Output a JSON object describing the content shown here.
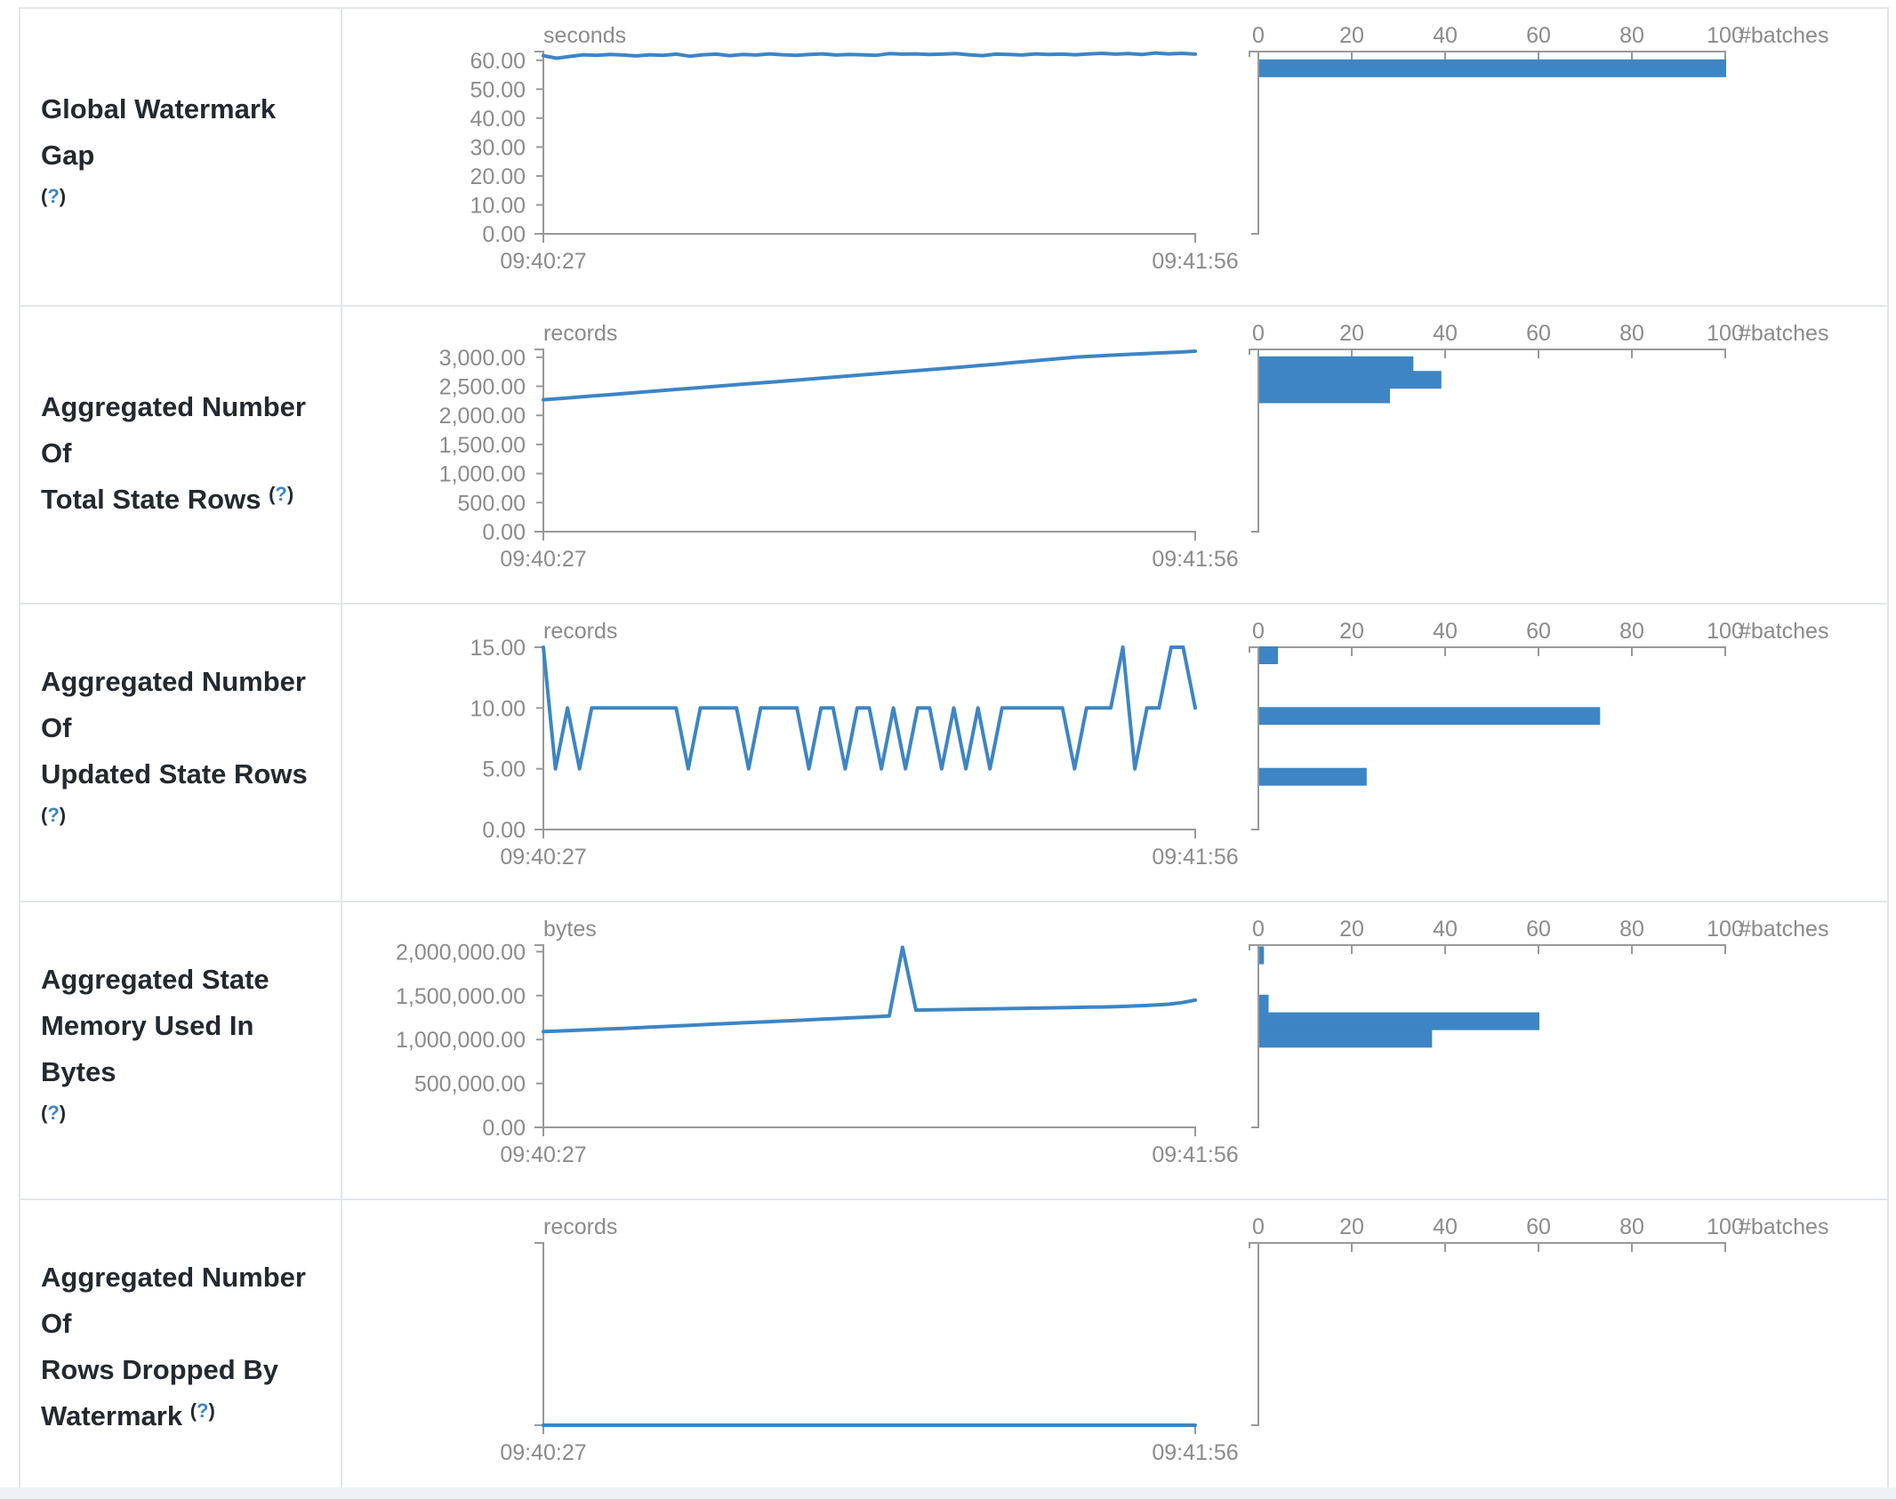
{
  "colors": {
    "accent_blue": "#3d85c4",
    "axis_gray": "#999999",
    "tick_text_gray": "#8b8b8b",
    "label_text": "#24292f",
    "border_gray": "#e3e6ea"
  },
  "time_axis": {
    "start_label": "09:40:27",
    "end_label": "09:41:56"
  },
  "histogram_axis": {
    "tick_labels": [
      "0",
      "20",
      "40",
      "60",
      "80",
      "100"
    ],
    "tick_values": [
      0,
      20,
      40,
      60,
      80,
      100
    ],
    "unit_label": "#batches",
    "max": 100
  },
  "help_symbol": "(?)",
  "chart_data": [
    {
      "metric": "Global Watermark Gap",
      "label_lines": [
        "Global Watermark Gap",
        "(?)"
      ],
      "timeline": {
        "type": "line",
        "unit": "seconds",
        "x_start": "09:40:27",
        "x_end": "09:41:56",
        "ylim": [
          0,
          63
        ],
        "yticks": [
          {
            "label": "60.00",
            "value": 60
          },
          {
            "label": "50.00",
            "value": 50
          },
          {
            "label": "40.00",
            "value": 40
          },
          {
            "label": "30.00",
            "value": 30
          },
          {
            "label": "20.00",
            "value": 20
          },
          {
            "label": "10.00",
            "value": 10
          },
          {
            "label": "0.00",
            "value": 0
          }
        ],
        "values": [
          61.6,
          60.7,
          61.3,
          61.9,
          61.7,
          62.0,
          61.8,
          61.5,
          61.9,
          61.7,
          62.1,
          61.4,
          61.9,
          62.1,
          61.6,
          62.0,
          61.8,
          62.2,
          61.9,
          61.7,
          62.0,
          62.2,
          61.8,
          62.0,
          61.9,
          61.7,
          62.3,
          62.1,
          62.2,
          62.0,
          62.1,
          62.3,
          61.9,
          61.6,
          62.1,
          62.0,
          61.8,
          62.2,
          62.0,
          62.1,
          61.9,
          62.2,
          62.4,
          62.1,
          62.3,
          62.0,
          62.5,
          62.2,
          62.4,
          62.1
        ]
      },
      "histogram": {
        "type": "bar",
        "unit": "#batches",
        "bars": [
          {
            "bin": 60,
            "count": 100
          }
        ]
      }
    },
    {
      "metric": "Aggregated Number Of Total State Rows",
      "label_lines": [
        "Aggregated Number Of",
        "Total State Rows (?)"
      ],
      "timeline": {
        "type": "line",
        "unit": "records",
        "x_start": "09:40:27",
        "x_end": "09:41:56",
        "ylim": [
          0,
          3135
        ],
        "yticks": [
          {
            "label": "3,000.00",
            "value": 3000
          },
          {
            "label": "2,500.00",
            "value": 2500
          },
          {
            "label": "2,000.00",
            "value": 2000
          },
          {
            "label": "1,500.00",
            "value": 1500
          },
          {
            "label": "1,000.00",
            "value": 1000
          },
          {
            "label": "500.00",
            "value": 500
          },
          {
            "label": "0.00",
            "value": 0
          }
        ],
        "values": [
          2270,
          2290,
          2312,
          2335,
          2357,
          2380,
          2402,
          2425,
          2448,
          2470,
          2492,
          2515,
          2538,
          2560,
          2582,
          2605,
          2628,
          2650,
          2672,
          2695,
          2718,
          2740,
          2762,
          2785,
          2808,
          2830,
          2855,
          2880,
          2905,
          2930,
          2955,
          2980,
          3005,
          3020,
          3035,
          3050,
          3063,
          3075,
          3088,
          3105
        ]
      },
      "histogram": {
        "type": "bar",
        "unit": "#batches",
        "bars": [
          {
            "bin": 3000,
            "count": 33
          },
          {
            "bin": 2750,
            "count": 39
          },
          {
            "bin": 2500,
            "count": 28
          }
        ]
      }
    },
    {
      "metric": "Aggregated Number Of Updated State Rows",
      "label_lines": [
        "Aggregated Number Of",
        "Updated State Rows (?)"
      ],
      "timeline": {
        "type": "line",
        "unit": "records",
        "x_start": "09:40:27",
        "x_end": "09:41:56",
        "ylim": [
          0,
          15
        ],
        "yticks": [
          {
            "label": "15.00",
            "value": 15
          },
          {
            "label": "10.00",
            "value": 10
          },
          {
            "label": "5.00",
            "value": 5
          },
          {
            "label": "0.00",
            "value": 0
          }
        ],
        "values": [
          15,
          5,
          10,
          5,
          10,
          10,
          10,
          10,
          10,
          10,
          10,
          10,
          5,
          10,
          10,
          10,
          10,
          5,
          10,
          10,
          10,
          10,
          5,
          10,
          10,
          5,
          10,
          10,
          5,
          10,
          5,
          10,
          10,
          5,
          10,
          5,
          10,
          5,
          10,
          10,
          10,
          10,
          10,
          10,
          5,
          10,
          10,
          10,
          15,
          5,
          10,
          10,
          15,
          15,
          10
        ]
      },
      "histogram": {
        "type": "bar",
        "unit": "#batches",
        "bars": [
          {
            "bin": 15,
            "count": 4
          },
          {
            "bin": 10,
            "count": 73
          },
          {
            "bin": 5,
            "count": 23
          }
        ]
      }
    },
    {
      "metric": "Aggregated State Memory Used In Bytes",
      "label_lines": [
        "Aggregated State",
        "Memory Used In Bytes",
        "(?)"
      ],
      "timeline": {
        "type": "line",
        "unit": "bytes",
        "x_start": "09:40:27",
        "x_end": "09:41:56",
        "ylim": [
          0,
          2075000
        ],
        "yticks": [
          {
            "label": "2,000,000.00",
            "value": 2000000
          },
          {
            "label": "1,500,000.00",
            "value": 1500000
          },
          {
            "label": "1,000,000.00",
            "value": 1000000
          },
          {
            "label": "500,000.00",
            "value": 500000
          },
          {
            "label": "0.00",
            "value": 0
          }
        ],
        "values": [
          1090000,
          1096000,
          1102000,
          1108000,
          1114000,
          1120000,
          1127000,
          1134000,
          1141000,
          1148000,
          1155000,
          1162000,
          1169000,
          1176000,
          1183000,
          1190000,
          1197000,
          1204000,
          1211000,
          1218000,
          1225000,
          1232000,
          1239000,
          1246000,
          1253000,
          1260000,
          1267000,
          2050000,
          1335000,
          1337000,
          1340000,
          1342000,
          1345000,
          1347000,
          1350000,
          1352000,
          1355000,
          1357000,
          1360000,
          1362000,
          1365000,
          1368000,
          1371000,
          1375000,
          1380000,
          1386000,
          1393000,
          1402000,
          1420000,
          1448000
        ]
      },
      "histogram": {
        "type": "bar",
        "unit": "#batches",
        "bars": [
          {
            "bin": 2050000,
            "count": 1
          },
          {
            "bin": 1500000,
            "count": 2
          },
          {
            "bin": 1300000,
            "count": 60
          },
          {
            "bin": 1100000,
            "count": 37
          }
        ]
      }
    },
    {
      "metric": "Aggregated Number Of Rows Dropped By Watermark",
      "label_lines": [
        "Aggregated Number Of",
        "Rows Dropped By",
        "Watermark (?)"
      ],
      "timeline": {
        "type": "line",
        "unit": "records",
        "x_start": "09:40:27",
        "x_end": "09:41:56",
        "ylim": [
          0,
          1
        ],
        "yticks": [],
        "values": [
          0,
          0
        ]
      },
      "histogram": {
        "type": "bar",
        "unit": "#batches",
        "bars": []
      }
    }
  ]
}
